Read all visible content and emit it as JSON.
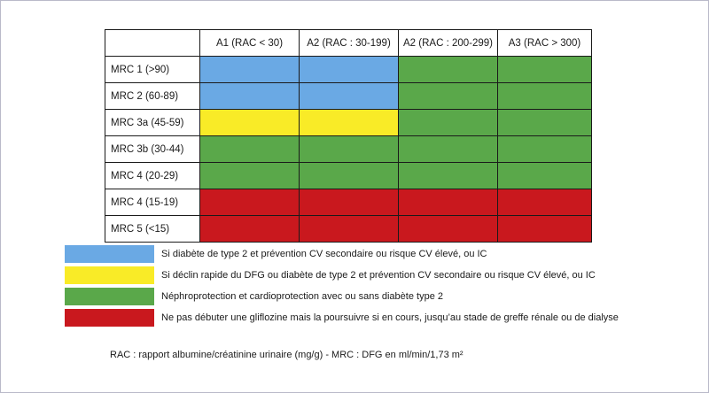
{
  "colors": {
    "blue": "#6aa9e4",
    "yellow": "#f9eb27",
    "green": "#5aa84a",
    "red": "#c9181e"
  },
  "table": {
    "columns": [
      "A1 (RAC < 30)",
      "A2 (RAC : 30-199)",
      "A2 (RAC : 200-299)",
      "A3 (RAC > 300)"
    ],
    "rows": [
      {
        "label": "MRC 1 (>90)",
        "cells": [
          "blue",
          "blue",
          "green",
          "green"
        ]
      },
      {
        "label": "MRC 2 (60-89)",
        "cells": [
          "blue",
          "blue",
          "green",
          "green"
        ]
      },
      {
        "label": "MRC 3a (45-59)",
        "cells": [
          "yellow",
          "yellow",
          "green",
          "green"
        ]
      },
      {
        "label": "MRC 3b (30-44)",
        "cells": [
          "green",
          "green",
          "green",
          "green"
        ]
      },
      {
        "label": "MRC 4 (20-29)",
        "cells": [
          "green",
          "green",
          "green",
          "green"
        ]
      },
      {
        "label": "MRC 4 (15-19)",
        "cells": [
          "red",
          "red",
          "red",
          "red"
        ]
      },
      {
        "label": "MRC 5 (<15)",
        "cells": [
          "red",
          "red",
          "red",
          "red"
        ]
      }
    ]
  },
  "legend": [
    {
      "color": "blue",
      "text": "Si diabète de type 2 et prévention CV secondaire ou risque CV élevé, ou IC"
    },
    {
      "color": "yellow",
      "text": "Si déclin rapide du DFG ou diabète de type 2 et prévention CV secondaire ou risque CV élevé, ou IC"
    },
    {
      "color": "green",
      "text": "Néphroprotection et cardioprotection avec ou sans diabète type 2"
    },
    {
      "color": "red",
      "text": "Ne pas débuter une gliflozine mais la poursuivre si en cours, jusqu’au stade de greffe rénale ou de dialyse"
    }
  ],
  "footnote": "RAC : rapport albumine/créatinine urinaire (mg/g) - MRC : DFG en ml/min/1,73 m²"
}
